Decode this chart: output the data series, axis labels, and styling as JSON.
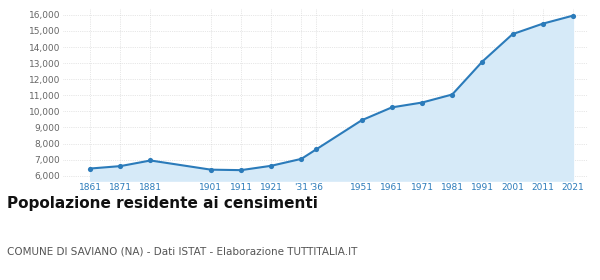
{
  "years": [
    1861,
    1871,
    1881,
    1901,
    1911,
    1921,
    1931,
    1936,
    1951,
    1961,
    1971,
    1981,
    1991,
    2001,
    2011,
    2021
  ],
  "population": [
    6450,
    6600,
    6950,
    6380,
    6350,
    6620,
    7050,
    7650,
    9450,
    10250,
    10550,
    11050,
    13100,
    14800,
    15450,
    15950
  ],
  "xtick_positions": [
    1861,
    1871,
    1881,
    1901,
    1911,
    1921,
    1931,
    1936,
    1951,
    1961,
    1971,
    1981,
    1991,
    2001,
    2011,
    2021
  ],
  "xtick_labels": [
    "1861",
    "1871",
    "1881",
    "1901",
    "1911",
    "1921",
    "'31",
    "'36",
    "1951",
    "1961",
    "1971",
    "1981",
    "1991",
    "2001",
    "2011",
    "2021"
  ],
  "ytick_positions": [
    6000,
    7000,
    8000,
    9000,
    10000,
    11000,
    12000,
    13000,
    14000,
    15000,
    16000
  ],
  "ytick_labels": [
    "6,000",
    "7,000",
    "8,000",
    "9,000",
    "10,000",
    "11,000",
    "12,000",
    "13,000",
    "14,000",
    "15,000",
    "16,000"
  ],
  "ylim": [
    5700,
    16400
  ],
  "xlim": [
    1852,
    2026
  ],
  "line_color": "#2b7bba",
  "fill_color": "#d6eaf8",
  "marker_color": "#2b7bba",
  "bg_color": "#ffffff",
  "grid_color": "#d0d0d0",
  "title": "Popolazione residente ai censimenti",
  "subtitle": "COMUNE DI SAVIANO (NA) - Dati ISTAT - Elaborazione TUTTITALIA.IT",
  "title_fontsize": 11,
  "subtitle_fontsize": 7.5
}
